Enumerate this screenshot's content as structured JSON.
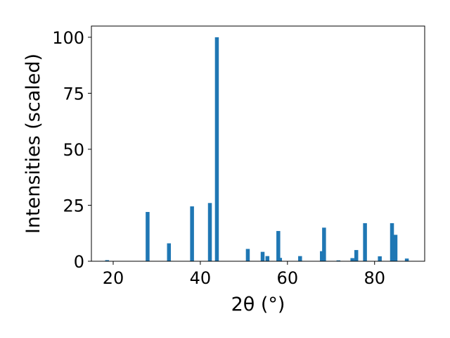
{
  "chart_data": {
    "type": "bar",
    "title": "",
    "xlabel": "2θ (°)",
    "ylabel": "Intensities (scaled)",
    "xlim": [
      15,
      91.5
    ],
    "ylim": [
      0,
      105
    ],
    "xticks": [
      20,
      40,
      60,
      80
    ],
    "yticks": [
      0,
      25,
      50,
      75,
      100
    ],
    "grid": false,
    "bar_color": "#1f77b4",
    "x": [
      18.6,
      27.9,
      32.8,
      38.1,
      42.2,
      43.8,
      50.9,
      54.3,
      55.4,
      57.9,
      58.3,
      62.9,
      67.9,
      68.4,
      71.7,
      74.9,
      75.8,
      77.8,
      81.2,
      84.0,
      84.8,
      87.4
    ],
    "values": [
      0.5,
      22,
      8,
      24.5,
      26,
      100,
      5.5,
      4.2,
      2.3,
      13.5,
      1.5,
      2.3,
      4.5,
      15,
      0.4,
      1.4,
      5,
      17,
      2.2,
      17,
      11.8,
      1.2
    ]
  }
}
